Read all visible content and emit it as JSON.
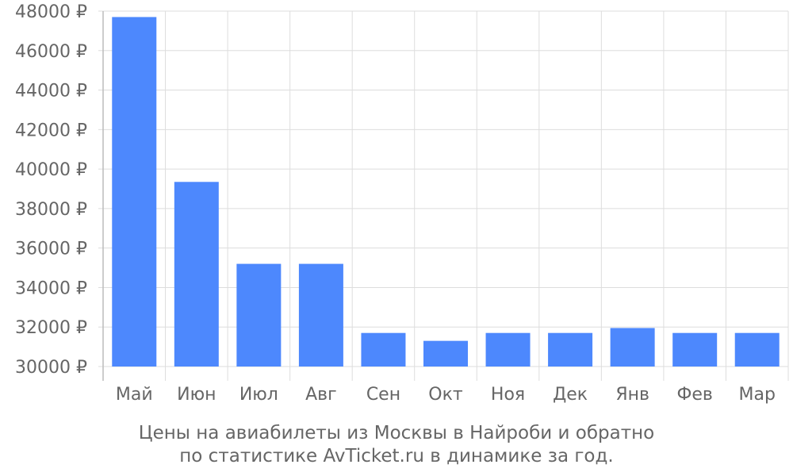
{
  "chart_data": {
    "type": "bar",
    "categories": [
      "Май",
      "Июн",
      "Июл",
      "Авг",
      "Сен",
      "Окт",
      "Ноя",
      "Дек",
      "Янв",
      "Фев",
      "Мар"
    ],
    "values": [
      47700,
      39350,
      35200,
      35200,
      31700,
      31300,
      31700,
      31700,
      31950,
      31700,
      31700
    ],
    "ylim": [
      30000,
      48000
    ],
    "ytick_step": 2000,
    "currency_suffix": "₽",
    "grid": true,
    "bar_color": "#4d88fd",
    "caption_lines": [
      "Цены на авиабилеты из Москвы в Найроби и обратно",
      "по статистике AvTicket.ru в динамике за год."
    ]
  }
}
